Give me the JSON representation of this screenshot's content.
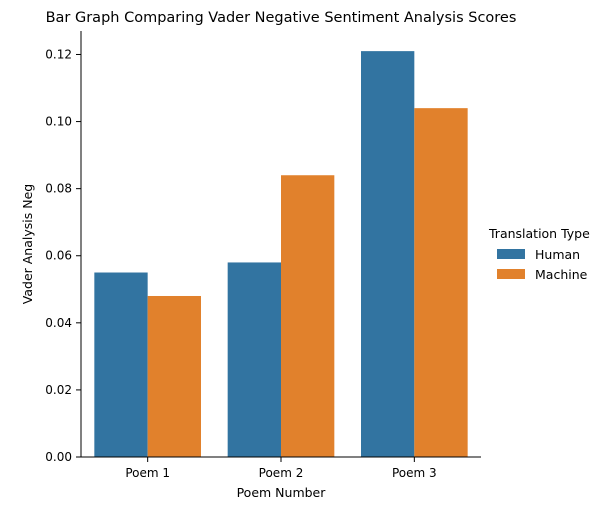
{
  "chart_data": {
    "type": "bar",
    "title": "Bar Graph Comparing Vader Negative Sentiment Analysis Scores",
    "xlabel": "Poem Number",
    "ylabel": "Vader Analysis Neg",
    "categories": [
      "Poem 1",
      "Poem 2",
      "Poem 3"
    ],
    "series": [
      {
        "name": "Human",
        "values": [
          0.055,
          0.058,
          0.121
        ],
        "color": "#3274a1"
      },
      {
        "name": "Machine",
        "values": [
          0.048,
          0.084,
          0.104
        ],
        "color": "#e1812c"
      }
    ],
    "ylim": [
      0,
      0.127
    ],
    "yticks": [
      0.0,
      0.02,
      0.04,
      0.06,
      0.08,
      0.1,
      0.12
    ],
    "ytick_labels": [
      "0.00",
      "0.02",
      "0.04",
      "0.06",
      "0.08",
      "0.10",
      "0.12"
    ],
    "grid": false,
    "legend": {
      "title": "Translation Type",
      "placement": "right"
    }
  }
}
